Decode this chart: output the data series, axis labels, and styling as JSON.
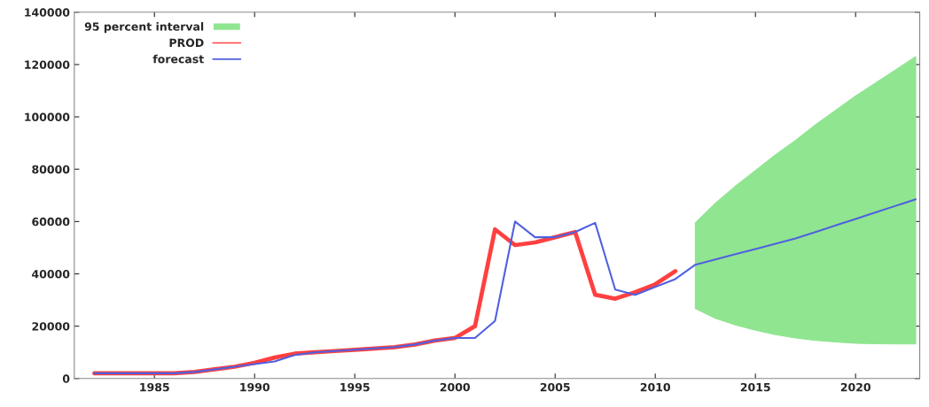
{
  "chart_data": {
    "type": "line",
    "xlim": [
      1981,
      2023.2
    ],
    "xticks": [
      1985,
      1990,
      1995,
      2000,
      2005,
      2010,
      2015,
      2020
    ],
    "ylim": [
      0,
      140000
    ],
    "yticks": [
      0,
      20000,
      40000,
      60000,
      80000,
      100000,
      120000,
      140000
    ],
    "grid": false,
    "legend": "top left",
    "marker": "none",
    "line_style": "solid",
    "series": [
      {
        "name": "95 percent interval",
        "type": "area",
        "color": "#90e590"
      },
      {
        "name": "PROD",
        "color": "#ff4040",
        "x": [
          1982,
          1983,
          1984,
          1985,
          1986,
          1987,
          1988,
          1989,
          1990,
          1991,
          1992,
          1993,
          1994,
          1995,
          1996,
          1997,
          1998,
          1999,
          2000,
          2001,
          2002,
          2003,
          2004,
          2005,
          2006,
          2007,
          2008,
          2009,
          2010,
          2011
        ],
        "values": [
          2000,
          2000,
          2000,
          2000,
          2000,
          2500,
          3500,
          4500,
          6000,
          8000,
          9500,
          10000,
          10500,
          11000,
          11500,
          12000,
          13000,
          14500,
          15500,
          20000,
          57000,
          51000,
          52000,
          54000,
          56000,
          32000,
          30500,
          33000,
          36000,
          41000
        ]
      },
      {
        "name": "forecast",
        "color": "#5060e0",
        "x": [
          1982,
          1983,
          1984,
          1985,
          1986,
          1987,
          1988,
          1989,
          1990,
          1991,
          1992,
          1993,
          1994,
          1995,
          1996,
          1997,
          1998,
          1999,
          2000,
          2001,
          2002,
          2003,
          2004,
          2005,
          2006,
          2007,
          2008,
          2009,
          2010,
          2011,
          2012,
          2013,
          2014,
          2015,
          2016,
          2017,
          2018,
          2019,
          2020,
          2021,
          2022,
          2023
        ],
        "values": [
          2000,
          2000,
          2000,
          2000,
          2000,
          2500,
          3500,
          4500,
          5500,
          6500,
          9000,
          10000,
          10500,
          11000,
          11500,
          12000,
          13000,
          14500,
          15500,
          15500,
          22000,
          60000,
          54000,
          54000,
          56000,
          59500,
          34000,
          32000,
          35000,
          38000,
          43500,
          45500,
          47500,
          49500,
          51500,
          53500,
          56000,
          58500,
          61000,
          63500,
          66000,
          68500
        ],
        "lower": [
          null,
          null,
          null,
          null,
          null,
          null,
          null,
          null,
          null,
          null,
          null,
          null,
          null,
          null,
          null,
          null,
          null,
          null,
          null,
          null,
          null,
          null,
          null,
          null,
          null,
          null,
          null,
          null,
          null,
          null,
          26700,
          23000,
          20500,
          18500,
          16800,
          15500,
          14600,
          14000,
          13500,
          13300,
          13200,
          13200
        ],
        "upper": [
          null,
          null,
          null,
          null,
          null,
          null,
          null,
          null,
          null,
          null,
          null,
          null,
          null,
          null,
          null,
          null,
          null,
          null,
          null,
          null,
          null,
          null,
          null,
          null,
          null,
          null,
          null,
          null,
          null,
          null,
          59500,
          67000,
          73500,
          79500,
          85500,
          91000,
          97000,
          102500,
          108000,
          113000,
          118000,
          123000
        ]
      }
    ]
  }
}
